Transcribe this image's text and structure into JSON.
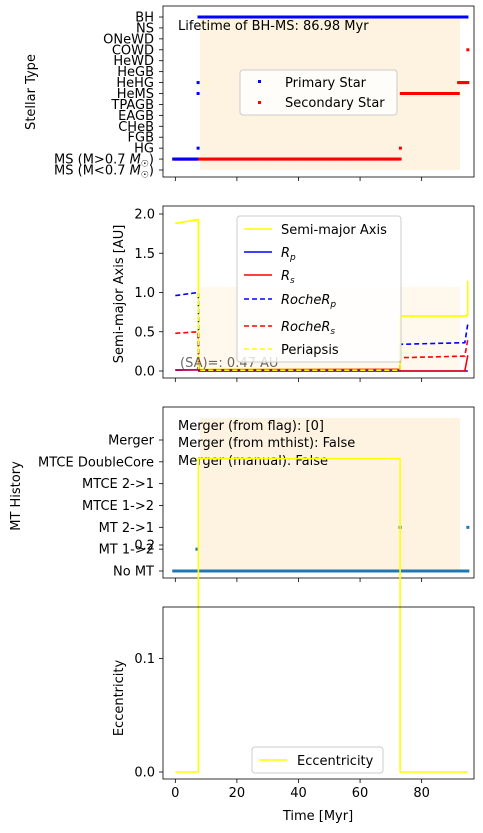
{
  "colors": {
    "primary": "#0000ff",
    "secondary": "#ff0000",
    "yellow": "#ffff00",
    "mt_points": "#1f77b4",
    "shade": "#fdefd6"
  },
  "shared_x": {
    "xlabel": "Time [Myr]",
    "xlim": [
      -4,
      97
    ],
    "ticks": [
      0,
      20,
      40,
      60,
      80
    ],
    "shaded_interval": [
      7.5,
      95
    ]
  },
  "chart_data": [
    {
      "type": "scatter",
      "ylabel": "Stellar Type",
      "annotation": "Lifetime of BH-MS: 86.98 Myr",
      "categories": [
        "MS (M<0.7 M☉)",
        "MS (M>0.7 M☉)",
        "HG",
        "FGB",
        "CHeB",
        "EAGB",
        "TPAGB",
        "HeMS",
        "HeHG",
        "HeGB",
        "HeWD",
        "COWD",
        "ONeWD",
        "NS",
        "BH"
      ],
      "legend": [
        "Primary Star",
        "Secondary Star"
      ],
      "legend_loc": "center-right",
      "series": [
        {
          "name": "Primary Star",
          "segments": [
            {
              "x_from": -0.5,
              "x_to": 7.3,
              "type_index": 1
            },
            {
              "x_from": 7.4,
              "x_to": 7.6,
              "type_index": 2
            },
            {
              "x_from": 7.4,
              "x_to": 7.6,
              "type_index": 7
            },
            {
              "x_from": 7.4,
              "x_to": 7.6,
              "type_index": 8
            },
            {
              "x_from": 7.7,
              "x_to": 95,
              "type_index": 14
            }
          ]
        },
        {
          "name": "Secondary Star",
          "segments": [
            {
              "x_from": -0.5,
              "x_to": 73,
              "type_index": 1
            },
            {
              "x_from": 73.1,
              "x_to": 73.3,
              "type_index": 2
            },
            {
              "x_from": 73.4,
              "x_to": 92,
              "type_index": 7
            },
            {
              "x_from": 92,
              "x_to": 95,
              "type_index": 8
            },
            {
              "x_from": 95,
              "x_to": 95,
              "type_index": 11
            }
          ]
        }
      ]
    },
    {
      "type": "line",
      "ylabel": "Semi-major Axis [AU]",
      "ylim": [
        -0.05,
        2.05
      ],
      "yticks": [
        "0.0",
        "0.5",
        "1.0",
        "1.5",
        "2.0"
      ],
      "annotation": "(SA)=: 0.47 AU",
      "legend": [
        "Semi-major Axis",
        "Rp",
        "Rs",
        "RocheRp",
        "RocheRs",
        "Periapsis"
      ],
      "legend_loc": "upper-center",
      "series": [
        {
          "name": "Semi-major Axis",
          "x": [
            0,
            7.5,
            7.5,
            73,
            73,
            94,
            94,
            95,
            95
          ],
          "y": [
            1.88,
            1.93,
            0.02,
            0.02,
            0.7,
            0.7,
            0.7,
            0.72,
            1.15
          ]
        },
        {
          "name": "Rp",
          "x": [
            0,
            7.2,
            7.3,
            7.5,
            7.6,
            95
          ],
          "y": [
            0.01,
            0.015,
            0.04,
            0.04,
            0.0,
            0.0
          ]
        },
        {
          "name": "Rs",
          "x": [
            0,
            73,
            73.1,
            94,
            94.1,
            95
          ],
          "y": [
            0.015,
            0.02,
            0.0,
            0.0,
            0.02,
            0.2
          ]
        },
        {
          "name": "RocheRp",
          "x": [
            0,
            7.3,
            7.5,
            7.6,
            73,
            73,
            94,
            94,
            95
          ],
          "y": [
            0.96,
            1.0,
            1.0,
            0.0,
            0.0,
            0.34,
            0.36,
            0.36,
            0.6
          ]
        },
        {
          "name": "RocheRs",
          "x": [
            0,
            7.3,
            7.6,
            73,
            73.1,
            94,
            95
          ],
          "y": [
            0.48,
            0.5,
            0.0,
            0.0,
            0.17,
            0.19,
            0.4
          ]
        },
        {
          "name": "Periapsis",
          "x": [
            0,
            7.5,
            7.5,
            73,
            73,
            95
          ],
          "y": [
            1.88,
            1.93,
            0.01,
            0.01,
            0.7,
            0.7
          ]
        }
      ]
    },
    {
      "type": "scatter",
      "ylabel": "MT History",
      "categories": [
        "No MT",
        "MT 1->2",
        "MT 2->1",
        "MTCE 1->2",
        "MTCE 2->1",
        "MTCE DoubleCore",
        "Merger"
      ],
      "annotations": [
        "Merger (from flag): [0]",
        "Merger (from mthist): False",
        "Merger (manual): False"
      ],
      "segments": [
        {
          "x_from": -0.5,
          "x_to": 95,
          "category_index": 0
        },
        {
          "x_from": 7.0,
          "x_to": 7.0,
          "category_index": 1
        },
        {
          "x_from": 73,
          "x_to": 73,
          "category_index": 2
        },
        {
          "x_from": 95,
          "x_to": 95,
          "category_index": 2
        }
      ]
    },
    {
      "type": "line",
      "ylabel": "Eccentricity",
      "ylim": [
        -0.014,
        0.29
      ],
      "yticks": [
        "0.0",
        "0.1",
        "0.2"
      ],
      "legend": [
        "Eccentricity"
      ],
      "legend_loc": "lower-center",
      "series": [
        {
          "name": "Eccentricity",
          "x": [
            0,
            7.5,
            7.5,
            73,
            73,
            95
          ],
          "y": [
            0,
            0,
            0.276,
            0.276,
            0,
            0
          ]
        }
      ]
    }
  ]
}
